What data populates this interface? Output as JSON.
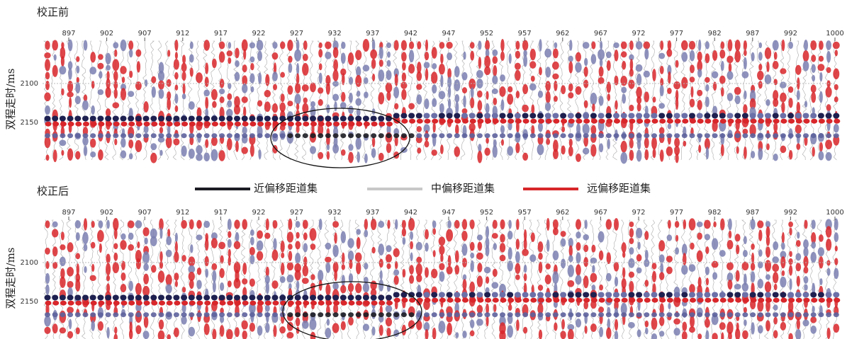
{
  "panels": [
    {
      "title": "校正前",
      "ylabel": "双程走时/ms",
      "xticks": [
        897,
        902,
        907,
        912,
        917,
        922,
        927,
        932,
        937,
        942,
        947,
        952,
        957,
        962,
        967,
        972,
        977,
        982,
        987,
        992,
        1000
      ],
      "yticks": [
        2100,
        2150
      ]
    },
    {
      "title": "校正后",
      "ylabel": "双程走时/ms",
      "xticks": [
        897,
        902,
        907,
        912,
        917,
        922,
        927,
        932,
        937,
        942,
        947,
        952,
        957,
        962,
        967,
        972,
        977,
        982,
        987,
        992,
        1000
      ],
      "yticks": [
        2100,
        2150
      ]
    }
  ],
  "legend": [
    {
      "label": "近偏移距道集",
      "color": "#1c1c24"
    },
    {
      "label": "中偏移距道集",
      "color": "#c8c8c8"
    },
    {
      "label": "远偏移距道集",
      "color": "#d8262a"
    }
  ]
}
